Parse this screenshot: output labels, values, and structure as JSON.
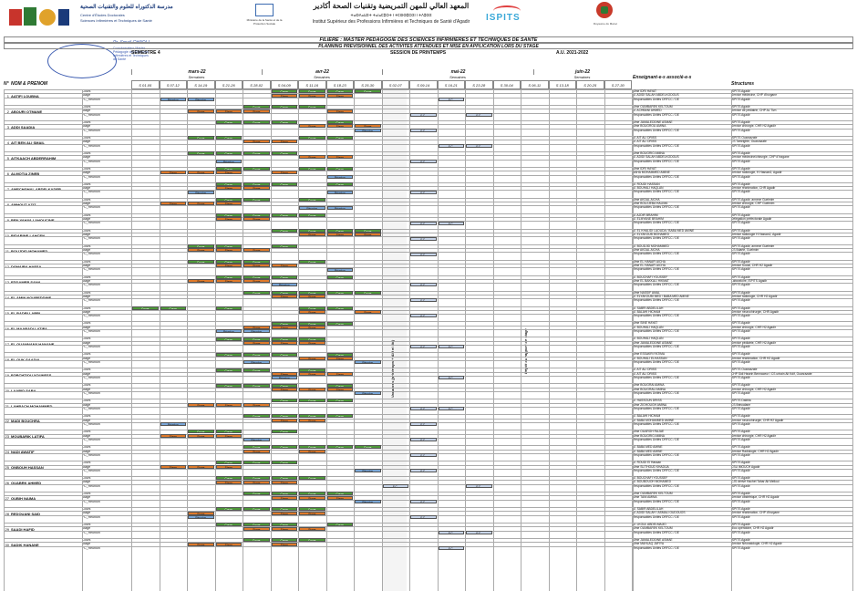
{
  "header": {
    "left_arabic": "مدرسة الدكتوراه للعلوم والتقنيات الصحية",
    "left_latin": "Centre d'Études Doctorales",
    "left_latin2": "Sciences Infirmières et Techniques de Santé",
    "ministry": "Ministère de la Santé et de la Protection Sociale",
    "isp_ar": "المعهد العالي للمهن التمريضية وتقنيات الصحة أكادير",
    "isp_tifinagh": "ⵜⴰⵙⴷⴰⵡⵉⵜ ⵜⴰⵏⴰⵎⵓⵔⵜ ⵏ ⵜⵎⵙⵙⵓⵔⵉⵏ ⵏ ⵜⴷⵓⵙⵉ",
    "isp_fr": "Institut Supérieur des Professions Infirmières et Techniques de Santé d'Agadir",
    "ispits": "ISPITS",
    "maroc": "Royaume du Maroc",
    "signature_name": "Pr. Smail CHADLI",
    "signature_lines": [
      "Coordonnateur Master",
      "Pédagogie des Sciences",
      "Infirmières et Techniques",
      "de Santé"
    ]
  },
  "filiere": "FILIERE : MASTER PEDAGOGIE DES SCIENCES INFIRMIERES ET TECHNIQUES DE SANTE",
  "planning": "PLANNING PREVISIONNEL DES ACTIVITES ATTENDUES ET MISE EN APPLICATION LORS DU STAGE",
  "semestre": "SEMESTRE 4",
  "session": "SESSION DE PRINTEMPS",
  "annee": "A.U. 2021-2022",
  "months": [
    "mars-22",
    "avr-22",
    "mai-22",
    "juin-22"
  ],
  "semaines_label": "Semaines",
  "weeks": [
    "S 01-05",
    "S 07-12",
    "S 14-19",
    "S 21-26",
    "S 28-02",
    "S 04-09",
    "S 11-16",
    "S 18-23",
    "S 25-30",
    "S 02-07",
    "S 09-14",
    "S 16-21",
    "S 23-28",
    "S 30-04",
    "S 06-11",
    "S 13-18",
    "S 20-25",
    "S 27-30"
  ],
  "col_num": "N°",
  "col_nom": "NOM & PRENOM",
  "col_ens": "Enseignant-e-s associé-e-s",
  "col_str": "Structures",
  "vacances": "Vacances (printemps + Aïd el fitr)",
  "depot": "Dépôt du rapport de stage",
  "row_kinds": [
    "Cours",
    "Stage",
    "FC_Réunion"
  ],
  "cell_labels": {
    "cours": "Cours",
    "stage": "Stage",
    "reunion": "Réunion",
    "fc": "F.C."
  },
  "students": [
    {
      "n": "1",
      "name": "AATIFI LOUBNA",
      "ens": [
        "Mme IDRI HAYAT",
        "M. ADIDI SALAH ABDELKODOUS",
        "Responsables Unités DRFCC / DE"
      ],
      "str": [
        "ISPITS Agadir",
        "Service médecine, CHP d'Inzgane",
        "ISPITS Agadir"
      ]
    },
    {
      "n": "2",
      "name": "ABOURI OTMANE",
      "ens": [
        "Mme OUMBAREK KELTOUM",
        "M. ACHBANI AHMED",
        "Responsables Unités DRFCC / DE"
      ],
      "str": [
        "ISPITS Agadir",
        "Service de pédiatrie, CHP AL Tizn",
        "ISPITS Agadir"
      ]
    },
    {
      "n": "3",
      "name": "ADDI SAADIA",
      "ens": [
        "Mme JAMALEDDINE ASMAE",
        "Mme BOUGROU AMINA",
        "Responsables Unités DRFCC / DE"
      ],
      "str": [
        "ISPITS Agadir",
        "Service chirurgie, CHR H2 Agadir",
        "ISPITS Agadir"
      ]
    },
    {
      "n": "4",
      "name": "AIT BEN ALI SMAIL",
      "ens": [
        "M. AIT ALI DRISS",
        "M. AIT ALI DRISS",
        "Responsables Unités DRFCC / DE"
      ],
      "str": [
        "ISPITS Ouarzazate",
        "CS Tamrighte, Ouarzazate",
        "ISPITS Agadir"
      ]
    },
    {
      "n": "5",
      "name": "AITKAACH ABDERRAHIM",
      "ens": [
        "Mme BOUGRIO AMINA",
        "M. ADIDI SALAH ABDELKODOUS",
        "Responsables Unités DRFCC / DE"
      ],
      "str": [
        "ISPITS Agadir",
        "Service médecine/chirurgie, CHP d'Inzgane",
        "ISPITS Agadir"
      ]
    },
    {
      "n": "6",
      "name": "ALMOTIA ZINEB",
      "ens": [
        "Mme IDRI HAYAT",
        "BAHA MOHAMMED AMINE",
        "Responsables Unités DRFCC / DE"
      ],
      "str": [
        "ISPITS Agadir",
        "Service radiologie, H Hassan2, Agadir",
        "ISPITS Agadir"
      ]
    },
    {
      "n": "7",
      "name": "AMECHGHAL ABDELKADER",
      "ens": [
        "M. ROUDI HASSAN",
        "M. BOUHALI HAQLAN",
        "Responsables Unités DRFCC / DE"
      ],
      "str": [
        "ISPITS Agadir",
        "Service réanimation, CHR Agadir",
        "ISPITS Agadir"
      ]
    },
    {
      "n": "8",
      "name": "AMHOUT AZIZ",
      "ens": [
        "Mme AKDAL AICHA",
        "Mme BOUJJEBA HALIMA",
        "Responsables Unités DRFCC / DE"
      ],
      "str": [
        "ISPITS Agadir, annexe Guelmim",
        "Service chirurgie, CHP Guelmim",
        "ISPITS Agadir"
      ]
    },
    {
      "n": "9",
      "name": "BEN YAHYA LAHOUCINE",
      "ens": [
        "M. AJDIR BRAHIM",
        "M. ELMYANE BRAHIM",
        "Responsables Unités DRFCC / DE"
      ],
      "str": [
        "ISPITS Agadir",
        "Délégation préfectorale Agadir",
        "ISPITS Agadir"
      ]
    },
    {
      "n": "10",
      "name": "BIDARINE LAHCEN",
      "ens": [
        "M. EL KHALIDI LAOUDA / BABA MED AMINE",
        "M. ELYAKOUB MOHAMED",
        "Responsables Unités DRFCC / DE"
      ],
      "str": [
        "ISPITS Agadir",
        "Service radiologie H Hassan2, Agadir",
        "ISPITS Agadir"
      ]
    },
    {
      "n": "11",
      "name": "BOUJDID MOHAMED",
      "ens": [
        "M. BOUDJID MOHAMMED",
        "Mme AKDAL AICHA",
        "Responsables Unités DRFCC / DE"
      ],
      "str": [
        "ISPITS Agadir, annexe Guelmim",
        "CS Bdarte, Guelmim",
        "ISPITS Agadir"
      ]
    },
    {
      "n": "12",
      "name": "DGHAIRA HAFSA",
      "ens": [
        "Mme EL HANAFI AICHA",
        "Mme EL HANAFI AICHA",
        "Responsables Unités DRFCC / DE"
      ],
      "str": [
        "ISPITS Agadir",
        "Service Social, CHR H2 Agadir",
        "ISPITS Agadir"
      ]
    },
    {
      "n": "13",
      "name": "EDDAMER SANA",
      "ens": [
        "M. BOUCHAFI YOUSSEF",
        "Mme EL BAKKALI HIKMAT",
        "Responsables Unités DRFCC / DE"
      ],
      "str": [
        "ISPITS Agadir",
        "Laboratoire, ISPITS Agadir",
        "ISPITS Agadir"
      ]
    },
    {
      "n": "14",
      "name": "EL AMIN NOUREDDINE",
      "ens": [
        "Mme NASSIF AMAL",
        "M. ELYAKOUBI MED / BABA MED AMINE",
        "Responsables Unités DRFCC / DE"
      ],
      "str": [
        "ISPITS Agadir",
        "Service radiologie, CHR H2 Agadir",
        "ISPITS Agadir"
      ]
    },
    {
      "n": "15",
      "name": "EL BADRI LARBI",
      "ens": [
        "M. SABRI ABDELILAH",
        "M. BALAHI HICHAM",
        "Responsables Unités DRFCC / DE"
      ],
      "str": [
        "ISPITS Agadir",
        "Service neurochirurgie, CHR Agadir",
        "ISPITS Agadir"
      ]
    },
    {
      "n": "16",
      "name": "EL MAARADI LATIFA",
      "ens": [
        "Mme SINE HAYAT",
        "M. BOUHALI HAQLAN",
        "Responsables Unités DRFCC / DE"
      ],
      "str": [
        "ISPITS Agadir",
        "Service chirurgie, CHR H2 Agadir",
        "ISPITS Agadir"
      ]
    },
    {
      "n": "17",
      "name": "EL OUANNANY HANANE",
      "ens": [
        "M. BOUHALI HAQLAN",
        "Mme JAMALEDDINE ASMAE",
        "Responsables Unités DRFCC / DE"
      ],
      "str": [
        "ISPITS Agadir",
        "Service pédiatrie, CHR H2 Agadir",
        "ISPITS Agadir"
      ]
    },
    {
      "n": "18",
      "name": "EL OUK SAADIA",
      "ens": [
        "Mme ESSAKRI FATIMA",
        "M. BOUHALI ELHASSAN",
        "Responsables Unités DRFCC / DE"
      ],
      "str": [
        "ISPITS Agadir",
        "Service réanimation, CHR H2 Agadir",
        "ISPITS Agadir"
      ]
    },
    {
      "n": "19",
      "name": "FORCHTIOU YOUNESS",
      "ens": [
        "M. AIT ALI DRISS",
        "M. AIT ALI DRISS",
        "Responsables Unités DRFCC / DE"
      ],
      "str": [
        "ISPITS Ouarzazate",
        "CHP Sidi Hssein Bennaceur / CS urbain Ait Kdif, Ouarzazate",
        "ISPITS Agadir"
      ]
    },
    {
      "n": "20",
      "name": "LAABID SARA",
      "ens": [
        "Mme BOUGRAI AMINA",
        "Mme BOUGRAU AMINA",
        "Responsables Unités DRFCC / DE"
      ],
      "str": [
        "ISPITS Agadir",
        "Service chirurgie, CHR H2 Agadir",
        "ISPITS Agadir"
      ]
    },
    {
      "n": "21",
      "name": "LAHRACH MOHAMMED",
      "ens": [
        "M. HASSOUN DRISS",
        "Mme ZIGHOUGH AMINA",
        "Responsables Unités DRFCC / DE"
      ],
      "str": [
        "ISPITS Dakhla",
        "CS Brincalane",
        "ISPITS Agadir"
      ]
    },
    {
      "n": "22",
      "name": "MADI BOUCHRA",
      "ens": [
        "M. BALAHI HICHAM",
        "M. BABA MOHAMMED AMINE",
        "Responsables Unités DRFCC / DE"
      ],
      "str": [
        "ISPITS Agadir",
        "Service neurochirurgie, CHR H2 Agadir",
        "ISPITS Agadir"
      ]
    },
    {
      "n": "23",
      "name": "MOUBARIK LATIFA",
      "ens": [
        "Mme OUARGH RAJAE",
        "Mme BOUGRIO AMINA",
        "Responsables Unités DRFCC / DE"
      ],
      "str": [
        "ISPITS Agadir",
        "Service chirurgie, CHR H2 Agadir",
        "ISPITS Agadir"
      ]
    },
    {
      "n": "24",
      "name": "NADI AWATIF",
      "ens": [
        "M. BABA MED AMINE",
        "M. BABA MED AMINE",
        "Responsables Unités DRFCC / DE"
      ],
      "str": [
        "ISPITS Agadir",
        "Service Radiologie, CHR H2 Agadir",
        "ISPITS Agadir"
      ]
    },
    {
      "n": "25",
      "name": "ONBOUH HASSAN",
      "ens": [
        "M. ROUDI El Hassan",
        "Mme SLITHOUD KHADIJA",
        "Responsables Unités DRFCC / DE"
      ],
      "str": [
        "ISPITS Agadir",
        "CSU IMOUCH Agadir",
        "ISPITS Agadir"
      ]
    },
    {
      "n": "26",
      "name": "OUABRK AHMED",
      "ens": [
        "M. BOUCHAFI YOUSSEF",
        "M. BOUBOUOH MOHAMED",
        "Responsables Unités DRFCC / DE"
      ],
      "str": [
        "ISPITS Agadir",
        "CJS dérivé Hachet Tahar Ait Melloul",
        "ISPITS Agadir"
      ]
    },
    {
      "n": "27",
      "name": "OUBIH NAIMA",
      "ens": [
        "Mme OUMBAREK KELTOUM",
        "Mme TANI AMINA",
        "Responsables Unités DRFCC / DE"
      ],
      "str": [
        "ISPITS Agadir",
        "Service obstétrique, CHR H2 Agadir",
        "ISPITS Agadir"
      ]
    },
    {
      "n": "28",
      "name": "REDOUANI SAID",
      "ens": [
        "M. SABIR ABDELILAH",
        "M. ADIDI SALAH / ASMALI OUDOUOS",
        "Responsables Unités DRFCC / DE"
      ],
      "str": [
        "ISPITS Agadir",
        "Service réanimation, CHP d'Inzgane",
        "ISPITS Agadir"
      ]
    },
    {
      "n": "29",
      "name": "SAADI HAFID",
      "ens": [
        "M. LKOUL ABDELMAJID",
        "Mme OUMBAREK KELTOUM",
        "Responsables Unités DRFCC / DE"
      ],
      "str": [
        "ISPITS Agadir",
        "Bloc opératoire, CHR H2 Agadir",
        "ISPITS Agadir"
      ]
    },
    {
      "n": "30",
      "name": "SADIK HANANE",
      "ens": [
        "Mme JAMALEDDINE ASMAE",
        "Mme MAHLAQ JAFIYA",
        "Responsables Unités DRFCC / DE"
      ],
      "str": [
        "ISPITS Agadir",
        "Service Néonatologie, CHR H2 Agadir",
        "ISPITS Agadir"
      ]
    }
  ]
}
